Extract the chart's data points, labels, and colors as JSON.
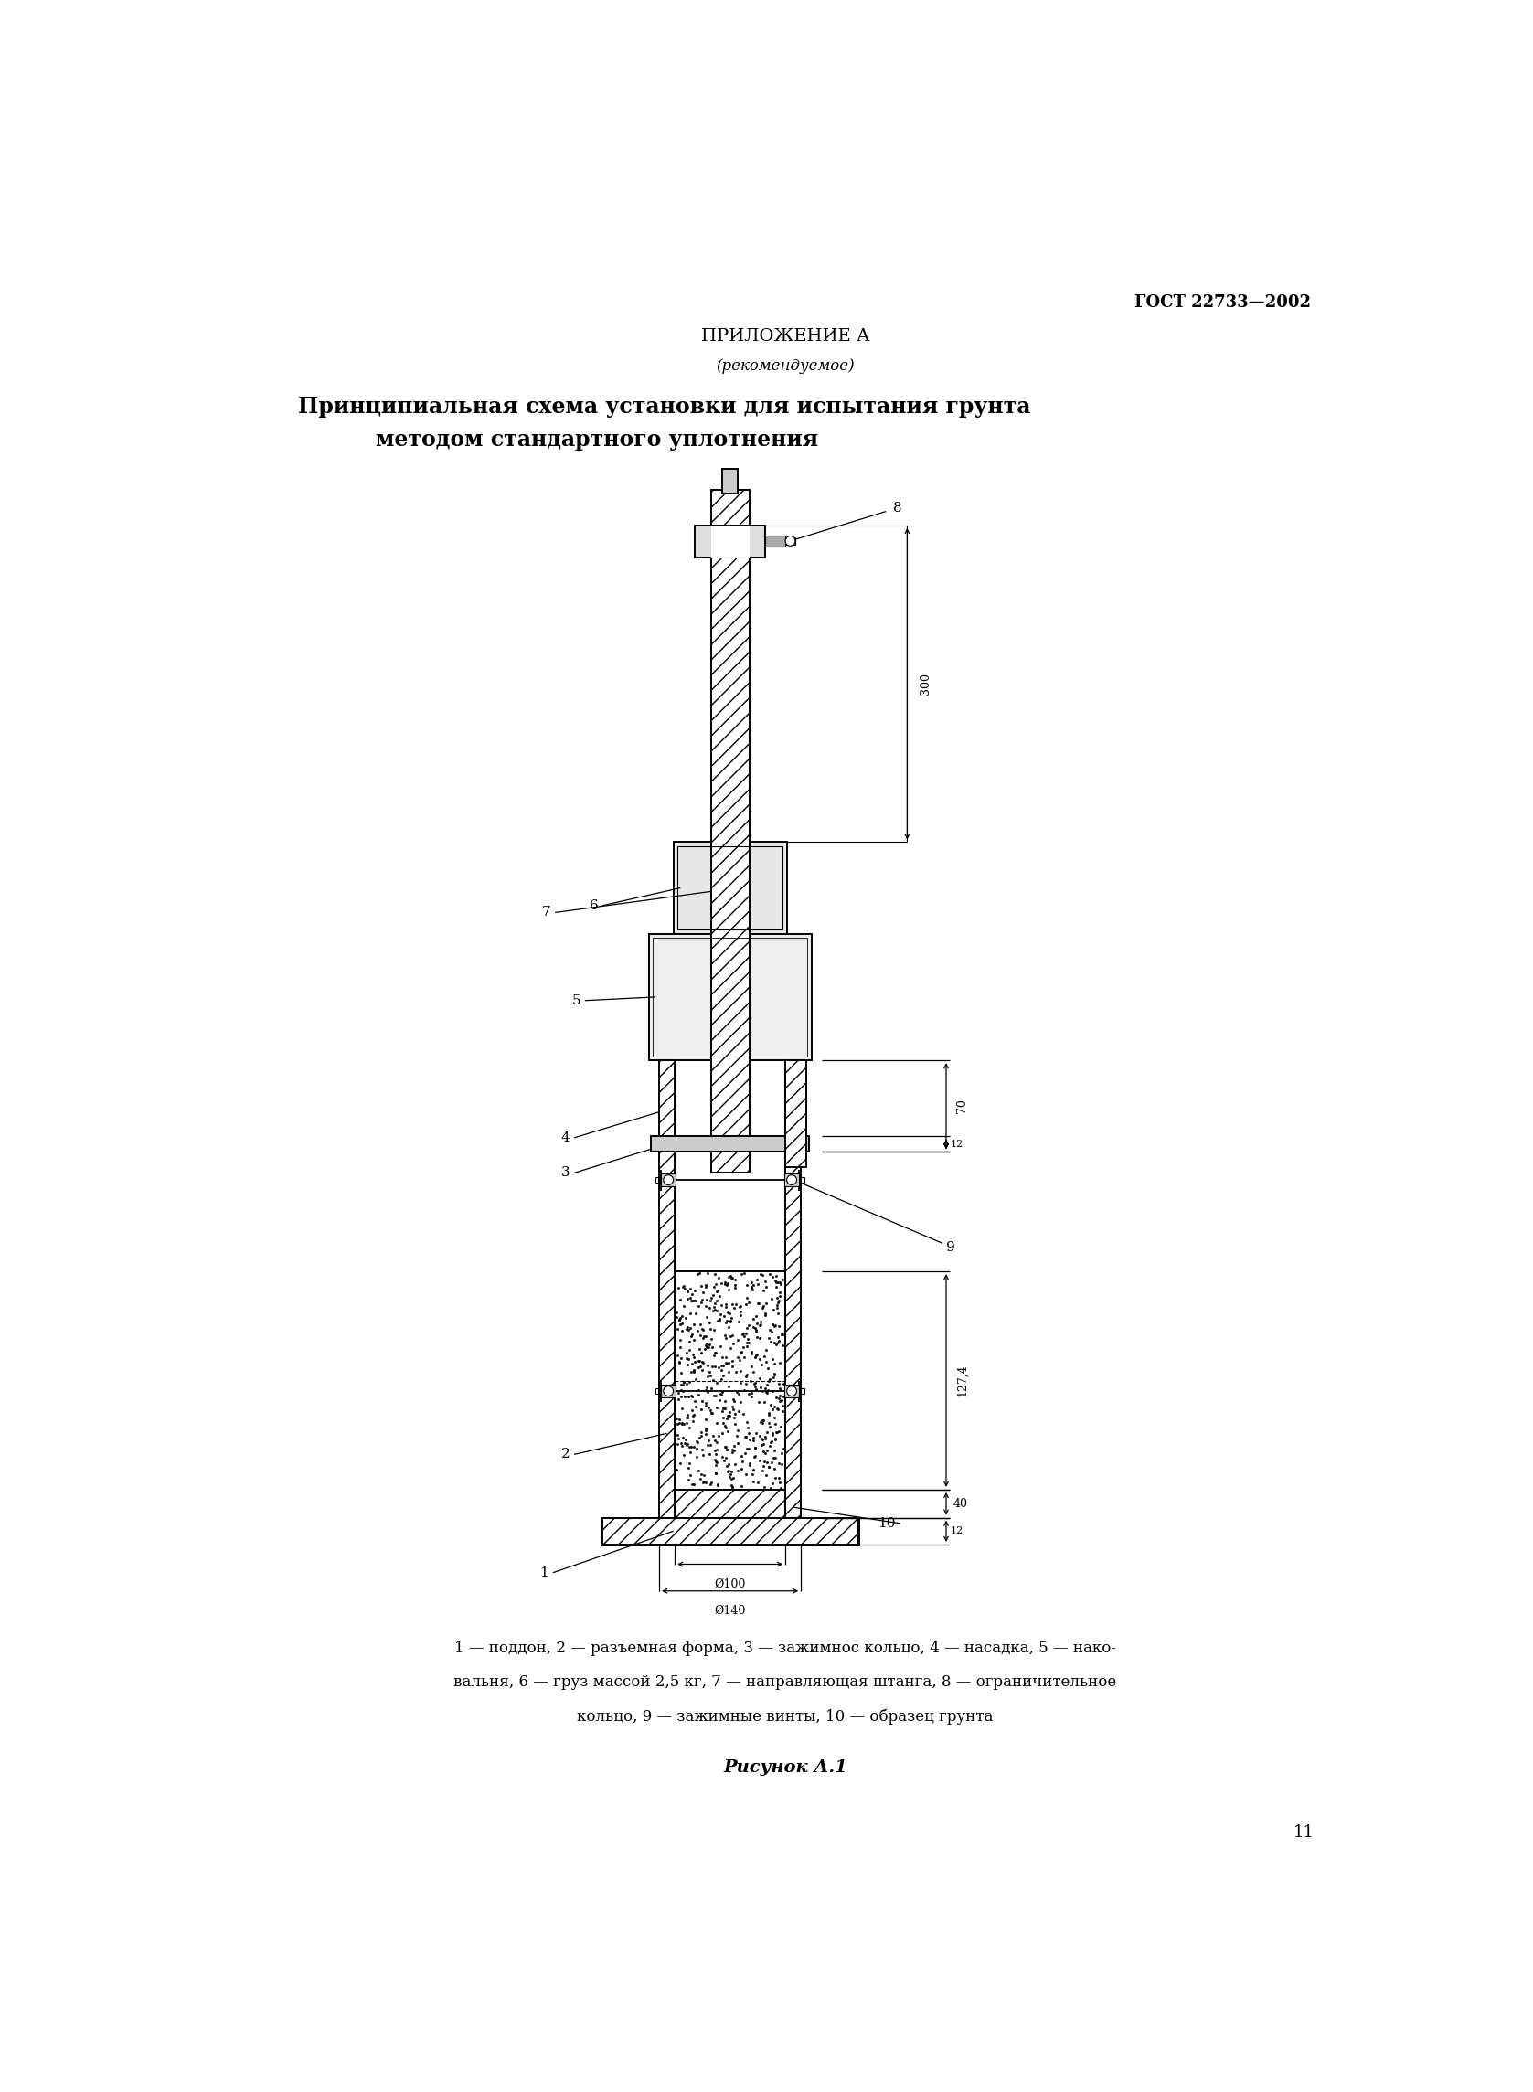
{
  "page_width": 16.77,
  "page_height": 22.89,
  "bg_color": "#ffffff",
  "title_gost": "ГОСТ 22733—2002",
  "header1": "ПРИЛОЖЕНИЕ А",
  "header2": "(рекомендуемое)",
  "main_title": "Принципиальная схема установки для испытания грунта\nметодом стандартного уплотнения",
  "caption_line1": "1 — поддон, 2 — разъемная форма, 3 — зажимнос кольцо, 4 — насадка, 5 — нако-",
  "caption_line2": "вальня, 6 — груз массой 2,5 кг, 7 — направляющая штанга, 8 — ограничительное",
  "caption_line3": "кольцо, 9 — зажимные винты, 10 — образец грунта",
  "figure_caption": "Рисунок А.1",
  "page_number": "11"
}
